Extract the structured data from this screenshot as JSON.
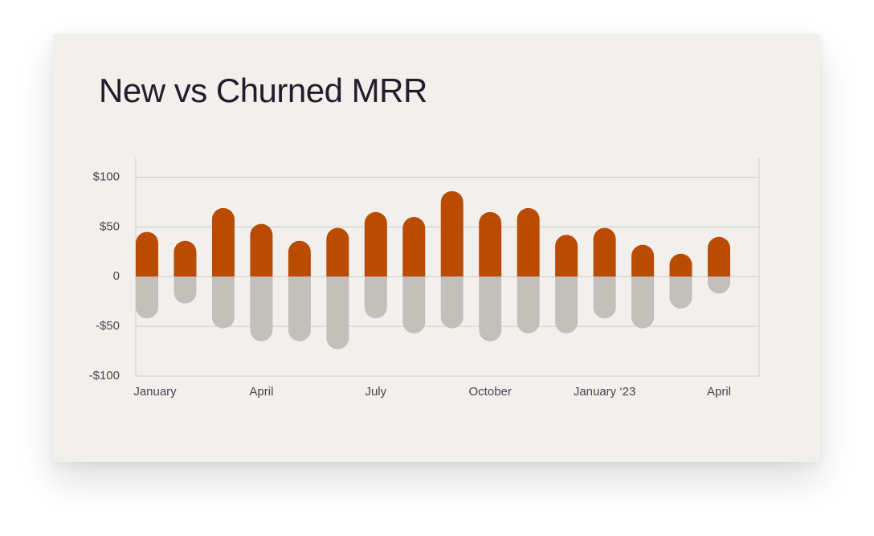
{
  "chart_data": {
    "type": "diverging-bar",
    "title": "New vs Churned MRR",
    "categories": [
      "January",
      null,
      null,
      "April",
      null,
      null,
      "July",
      null,
      null,
      "October",
      null,
      null,
      "January ‘23",
      null,
      null,
      "April"
    ],
    "series": [
      {
        "color": "#b94c02",
        "values": [
          45,
          36,
          69,
          53,
          36,
          49,
          65,
          60,
          86,
          65,
          69,
          42,
          49,
          32,
          23,
          40
        ]
      },
      {
        "color": "#c3c0bb",
        "values": [
          -42,
          -27,
          -52,
          -65,
          -65,
          -73,
          -42,
          -57,
          -52,
          -65,
          -57,
          -57,
          -42,
          -52,
          -32,
          -17
        ]
      }
    ],
    "ylim": [
      -100,
      119
    ],
    "yticks": [
      {
        "value": 100,
        "label": "$100"
      },
      {
        "value": 50,
        "label": "$50"
      },
      0,
      {
        "value": -50,
        "label": "-$50"
      },
      {
        "value": -100,
        "label": "-$100"
      }
    ],
    "grid": true
  }
}
